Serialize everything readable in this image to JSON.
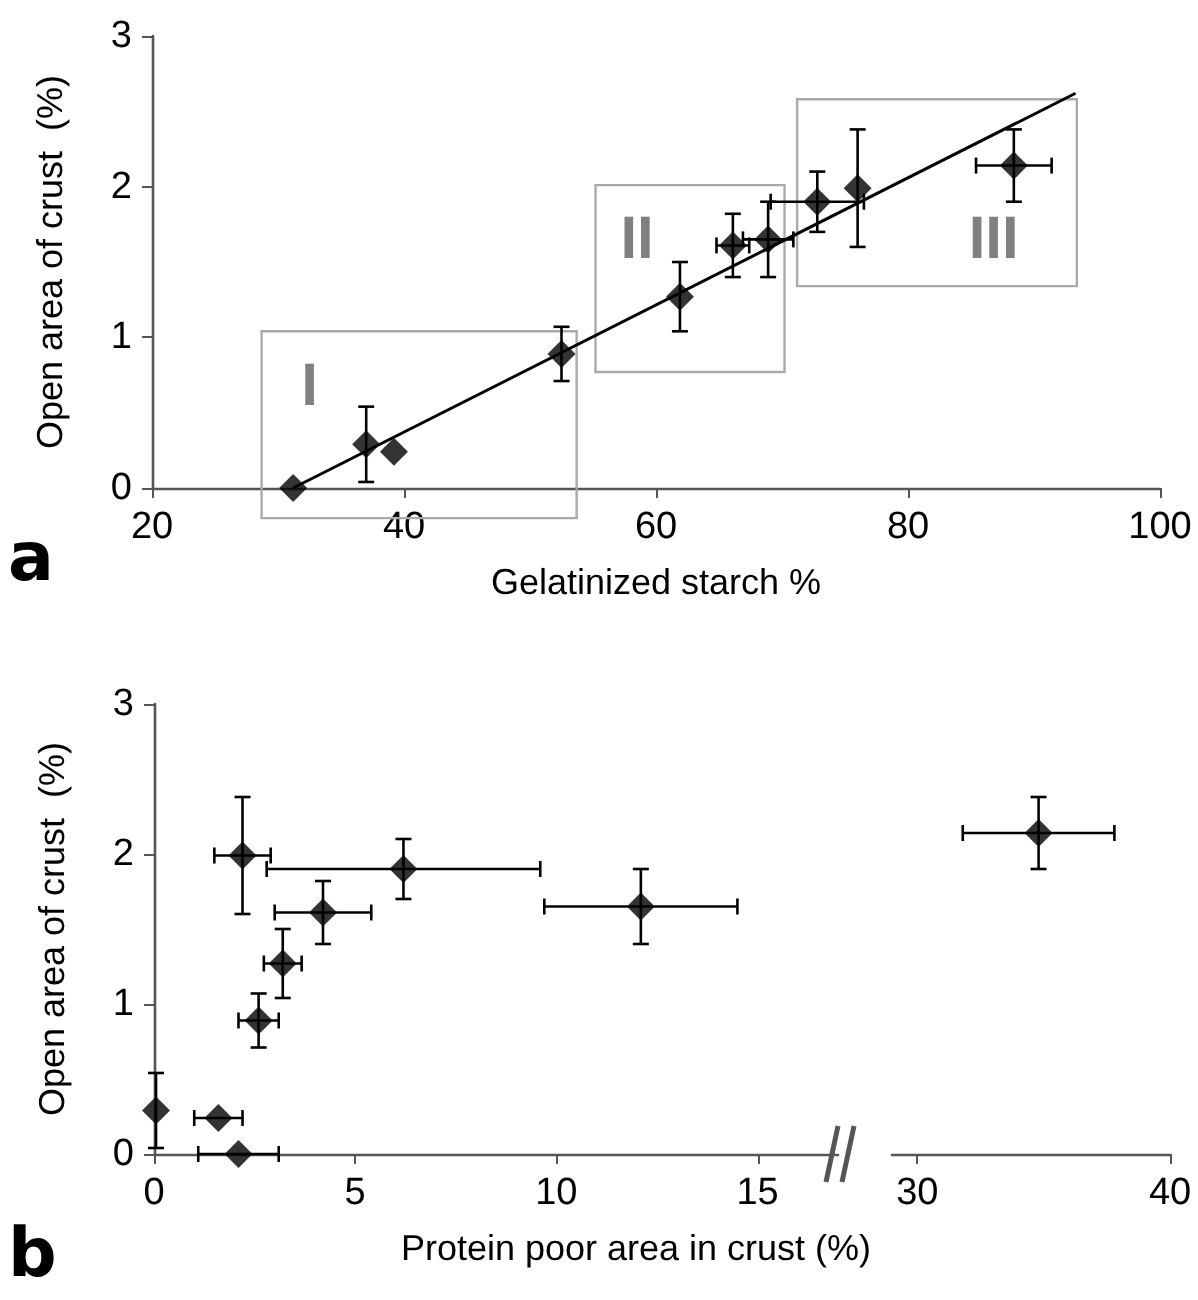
{
  "chart_data": [
    {
      "type": "scatter",
      "xlabel": "Gelatinized starch %",
      "ylabel": "Open area of crust  (%)",
      "xlim": [
        20,
        100
      ],
      "xticks": [
        20,
        40,
        60,
        80,
        100
      ],
      "ylim": [
        0,
        3
      ],
      "yticks": [
        0,
        1,
        2,
        3
      ],
      "grid": false,
      "marker": "diamond",
      "annotations": [
        "a",
        "I",
        "II",
        "III"
      ],
      "series": [
        {
          "color": "#000000",
          "x": [
            31.2,
            37.0,
            39.2,
            52.5,
            61.9,
            66.1,
            68.9,
            72.8,
            76.0,
            88.4
          ],
          "values": [
            0.0,
            0.29,
            0.24,
            0.89,
            1.27,
            1.61,
            1.65,
            1.9,
            1.99,
            2.14
          ],
          "errors": [
            null,
            0.25,
            null,
            0.18,
            0.23,
            0.21,
            0.25,
            0.2,
            0.39,
            0.24
          ],
          "xerrors": [
            null,
            null,
            null,
            null,
            null,
            1.3,
            2.0,
            3.7,
            null,
            3.0
          ]
        },
        {
          "type": "line",
          "color": "#000000",
          "marker": "none",
          "x": [
            31.2,
            93.3
          ],
          "values": [
            0.0,
            2.62
          ]
        }
      ]
    },
    {
      "type": "scatter",
      "xlabel": "Protein poor area in crust (%)",
      "ylabel": "Open area of crust  (%)",
      "xlim": [
        0,
        17
      ],
      "xticks": [
        0,
        5,
        10,
        15
      ],
      "ylim": [
        0,
        3
      ],
      "yticks": [
        0,
        1,
        2,
        3
      ],
      "grid": false,
      "marker": "diamond",
      "annotations": [
        "b"
      ],
      "series": [
        {
          "color": "#000000",
          "x": [
            0.05,
            1.6,
            2.1,
            2.6,
            3.2,
            2.2,
            4.2,
            6.2,
            12.1
          ],
          "values": [
            0.29,
            0.24,
            0.0,
            0.89,
            1.27,
            1.99,
            1.61,
            1.9,
            1.65
          ],
          "errors": [
            0.25,
            null,
            null,
            0.18,
            0.23,
            0.39,
            0.21,
            0.2,
            0.25
          ],
          "xerrors": [
            null,
            0.6,
            1.0,
            0.5,
            0.47,
            0.7,
            1.2,
            3.4,
            2.4
          ]
        }
      ]
    },
    {
      "type": "scatter",
      "xlim": [
        29,
        40
      ],
      "xticks": [
        30,
        40
      ],
      "ylim": [
        0,
        3
      ],
      "tick_labels": "x",
      "grid": false,
      "marker": "diamond",
      "series": [
        {
          "color": "#000000",
          "x": [
            34.8
          ],
          "values": [
            2.14
          ],
          "errors": [
            0.24
          ],
          "xerrors": [
            3.0
          ]
        }
      ]
    }
  ]
}
